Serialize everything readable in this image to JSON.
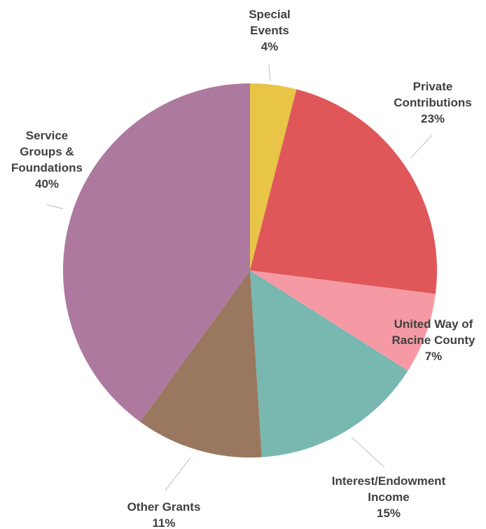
{
  "chart_data": {
    "type": "pie",
    "start_angle_deg": 0,
    "direction": "clockwise",
    "slices": [
      {
        "label": "Special Events",
        "label_lines": [
          "Special",
          "Events"
        ],
        "value": 4,
        "value_label": "4%",
        "color": "#E8C547"
      },
      {
        "label": "Private Contributions",
        "label_lines": [
          "Private",
          "Contributions"
        ],
        "value": 23,
        "value_label": "23%",
        "color": "#E0575A"
      },
      {
        "label": "United Way of Racine County",
        "label_lines": [
          "United Way of",
          "Racine County"
        ],
        "value": 7,
        "value_label": "7%",
        "color": "#F59AA4"
      },
      {
        "label": "Interest/Endowment Income",
        "label_lines": [
          "Interest/Endowment",
          "Income"
        ],
        "value": 15,
        "value_label": "15%",
        "color": "#78B8B1"
      },
      {
        "label": "Other Grants",
        "label_lines": [
          "Other Grants"
        ],
        "value": 11,
        "value_label": "11%",
        "color": "#9A775F"
      },
      {
        "label": "Service Groups & Foundations",
        "label_lines": [
          "Service",
          "Groups &",
          "Foundations"
        ],
        "value": 40,
        "value_label": "40%",
        "color": "#AD799F"
      }
    ]
  }
}
